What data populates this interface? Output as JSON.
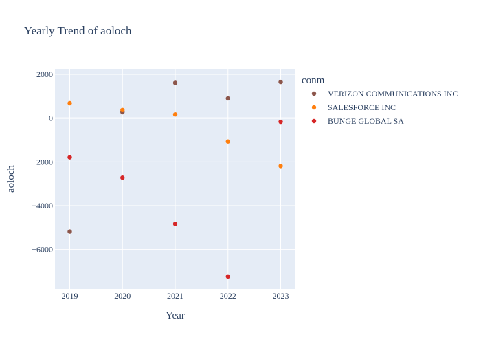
{
  "chart_data": {
    "type": "scatter",
    "title": "Yearly Trend of aoloch",
    "xlabel": "Year",
    "ylabel": "aoloch",
    "x": [
      2019,
      2020,
      2021,
      2022,
      2023
    ],
    "x_ticks": [
      "2019",
      "2020",
      "2021",
      "2022",
      "2023"
    ],
    "xlim": [
      2018.72,
      2023.28
    ],
    "ylim": [
      -7800,
      2250
    ],
    "y_ticks": [
      {
        "value": 2000,
        "label": "2000"
      },
      {
        "value": 0,
        "label": "0"
      },
      {
        "value": -2000,
        "label": "−2000"
      },
      {
        "value": -4000,
        "label": "−4000"
      },
      {
        "value": -6000,
        "label": "−6000"
      }
    ],
    "grid": true,
    "legend": {
      "title": "conm",
      "placement": "right"
    },
    "series": [
      {
        "name": "VERIZON COMMUNICATIONS INC",
        "color": "#8c564b",
        "values": [
          -5180,
          270,
          1610,
          900,
          1650
        ]
      },
      {
        "name": "SALESFORCE INC",
        "color": "#ff7f0e",
        "values": [
          680,
          370,
          170,
          -1070,
          -2190
        ]
      },
      {
        "name": "BUNGE GLOBAL SA",
        "color": "#d62728",
        "values": [
          -1790,
          -2720,
          -4830,
          -7230,
          -170
        ]
      }
    ]
  }
}
